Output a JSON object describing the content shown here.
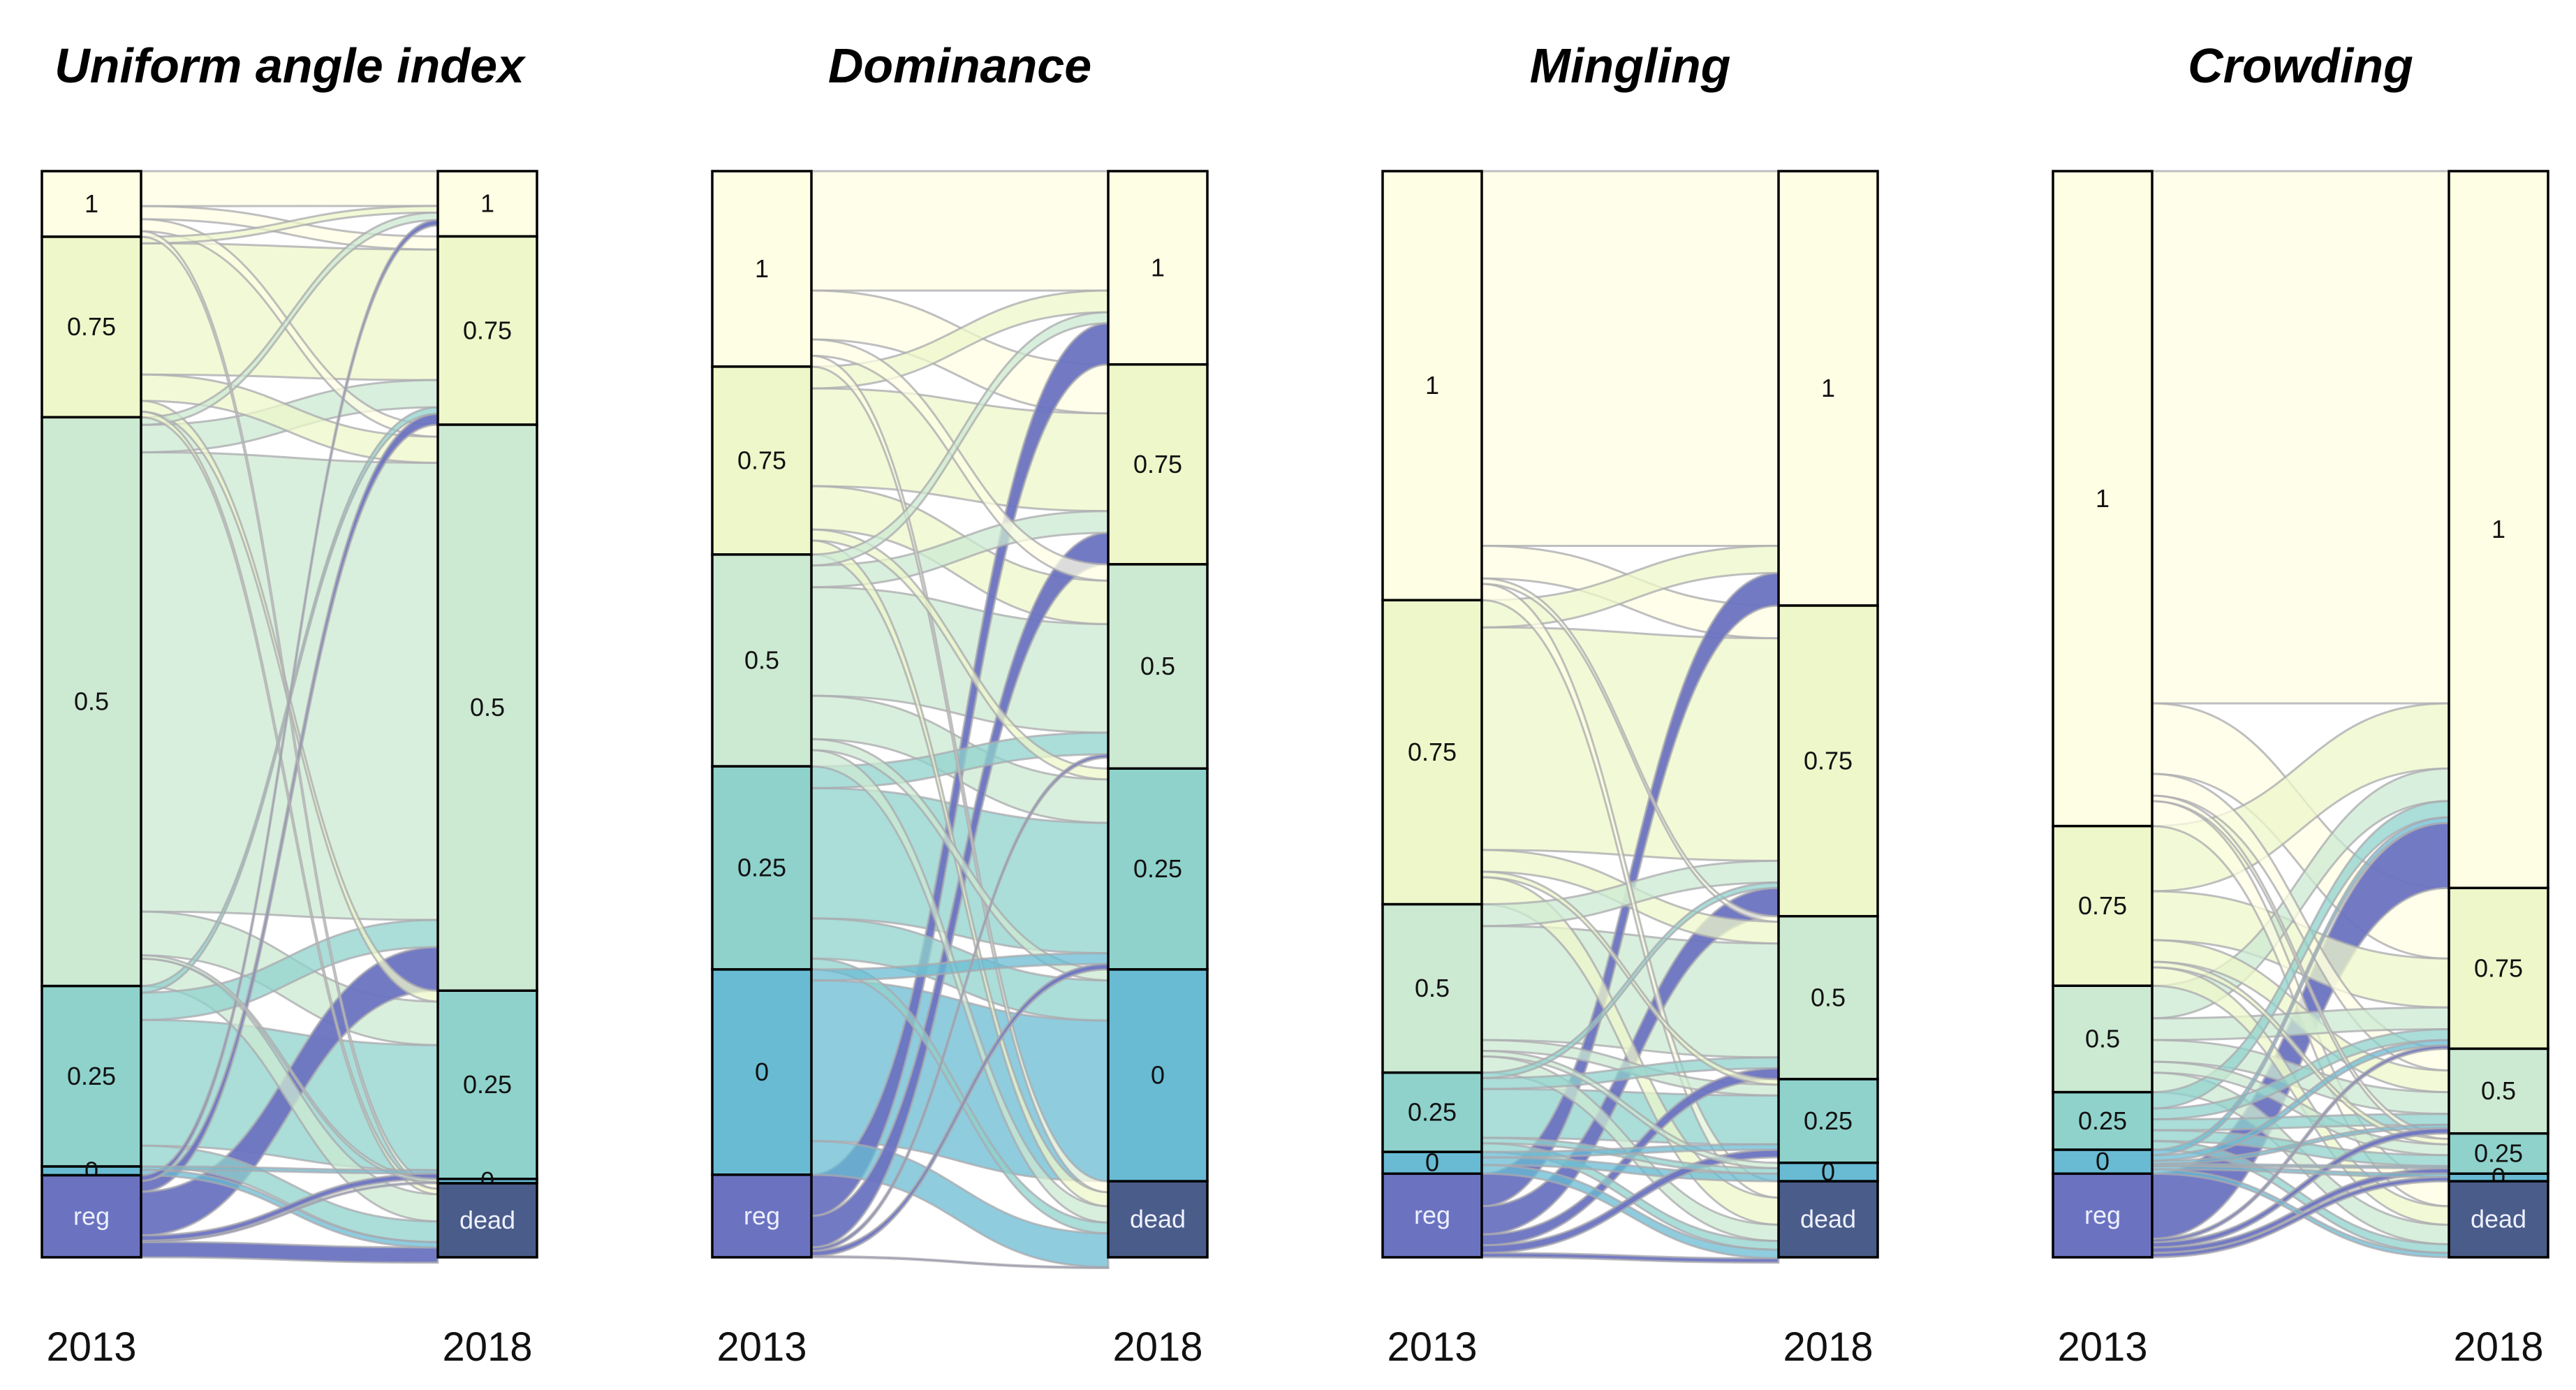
{
  "chart_data": [
    {
      "type": "alluvial",
      "title": "Uniform angle index",
      "x": [
        "2013",
        "2018"
      ],
      "left": [
        {
          "label": "1",
          "value": 6,
          "color": "#fdfee3"
        },
        {
          "label": "0.75",
          "value": 16.5,
          "color": "#edf7c9"
        },
        {
          "label": "0.5",
          "value": 52,
          "color": "#cce9d2"
        },
        {
          "label": "0.25",
          "value": 16.5,
          "color": "#8fd2cc"
        },
        {
          "label": "0",
          "value": 0.8,
          "color": "#68bbd3"
        },
        {
          "label": "reg",
          "value": 7.5,
          "color": "#6b73c1"
        }
      ],
      "right": [
        {
          "label": "1",
          "value": 6,
          "color": "#fdfee3"
        },
        {
          "label": "0.75",
          "value": 17.3,
          "color": "#edf7c9"
        },
        {
          "label": "0.5",
          "value": 52,
          "color": "#cce9d2"
        },
        {
          "label": "0.25",
          "value": 17.3,
          "color": "#8fd2cc"
        },
        {
          "label": "0",
          "value": 0.4,
          "color": "#68bbd3"
        },
        {
          "label": "dead",
          "value": 6.8,
          "color": "#4a5c89"
        }
      ],
      "flows": [
        {
          "from": "1",
          "to": "1",
          "value": 3.2
        },
        {
          "from": "1",
          "to": "0.75",
          "value": 1.2
        },
        {
          "from": "1",
          "to": "0.5",
          "value": 1.1
        },
        {
          "from": "1",
          "to": "dead",
          "value": 0.5
        },
        {
          "from": "0.75",
          "to": "0.75",
          "value": 12
        },
        {
          "from": "0.75",
          "to": "0.5",
          "value": 2.4
        },
        {
          "from": "0.75",
          "to": "0.25",
          "value": 1
        },
        {
          "from": "0.75",
          "to": "1",
          "value": 0.6
        },
        {
          "from": "0.75",
          "to": "dead",
          "value": 0.5
        },
        {
          "from": "0.5",
          "to": "0.75",
          "value": 2.5
        },
        {
          "from": "0.5",
          "to": "0.5",
          "value": 42
        },
        {
          "from": "0.5",
          "to": "0.25",
          "value": 4
        },
        {
          "from": "0.5",
          "to": "1",
          "value": 0.7
        },
        {
          "from": "0.5",
          "to": "0",
          "value": 0.3
        },
        {
          "from": "0.5",
          "to": "dead",
          "value": 2.5
        },
        {
          "from": "0.25",
          "to": "0.5",
          "value": 2.5
        },
        {
          "from": "0.25",
          "to": "0.25",
          "value": 11.5
        },
        {
          "from": "0.25",
          "to": "0.75",
          "value": 0.6
        },
        {
          "from": "0.25",
          "to": "dead",
          "value": 1.9
        },
        {
          "from": "0",
          "to": "0.25",
          "value": 0.3
        },
        {
          "from": "0",
          "to": "dead",
          "value": 0.5
        },
        {
          "from": "reg",
          "to": "1",
          "value": 0.5
        },
        {
          "from": "reg",
          "to": "0.75",
          "value": 1
        },
        {
          "from": "reg",
          "to": "0.5",
          "value": 4
        },
        {
          "from": "reg",
          "to": "0.25",
          "value": 0.5
        },
        {
          "from": "reg",
          "to": "0",
          "value": 0.1
        },
        {
          "from": "reg",
          "to": "dead",
          "value": 1.4
        }
      ]
    },
    {
      "type": "alluvial",
      "title": "Dominance",
      "x": [
        "2013",
        "2018"
      ],
      "left": [
        {
          "label": "1",
          "value": 18,
          "color": "#fdfee3"
        },
        {
          "label": "0.75",
          "value": 17.3,
          "color": "#edf7c9"
        },
        {
          "label": "0.5",
          "value": 19.5,
          "color": "#cce9d2"
        },
        {
          "label": "0.25",
          "value": 18.7,
          "color": "#8fd2cc"
        },
        {
          "label": "0",
          "value": 18.9,
          "color": "#68bbd3"
        },
        {
          "label": "reg",
          "value": 7.6,
          "color": "#6b73c1"
        }
      ],
      "right": [
        {
          "label": "1",
          "value": 17.8,
          "color": "#fdfee3"
        },
        {
          "label": "0.75",
          "value": 18.4,
          "color": "#edf7c9"
        },
        {
          "label": "0.5",
          "value": 18.8,
          "color": "#cce9d2"
        },
        {
          "label": "0.25",
          "value": 18.5,
          "color": "#8fd2cc"
        },
        {
          "label": "0",
          "value": 19.5,
          "color": "#68bbd3"
        },
        {
          "label": "dead",
          "value": 7,
          "color": "#4a5c89"
        }
      ],
      "flows": [
        {
          "from": "1",
          "to": "1",
          "value": 11
        },
        {
          "from": "1",
          "to": "0.75",
          "value": 4.5
        },
        {
          "from": "1",
          "to": "0.5",
          "value": 1.5
        },
        {
          "from": "1",
          "to": "dead",
          "value": 1
        },
        {
          "from": "0.75",
          "to": "1",
          "value": 2
        },
        {
          "from": "0.75",
          "to": "0.75",
          "value": 9
        },
        {
          "from": "0.75",
          "to": "0.5",
          "value": 4
        },
        {
          "from": "0.75",
          "to": "0.25",
          "value": 1
        },
        {
          "from": "0.75",
          "to": "dead",
          "value": 1.3
        },
        {
          "from": "0.5",
          "to": "1",
          "value": 1
        },
        {
          "from": "0.5",
          "to": "0.75",
          "value": 2
        },
        {
          "from": "0.5",
          "to": "0.5",
          "value": 10
        },
        {
          "from": "0.5",
          "to": "0.25",
          "value": 4
        },
        {
          "from": "0.5",
          "to": "0",
          "value": 1
        },
        {
          "from": "0.5",
          "to": "dead",
          "value": 1.5
        },
        {
          "from": "0.25",
          "to": "0.5",
          "value": 2
        },
        {
          "from": "0.25",
          "to": "0.25",
          "value": 12
        },
        {
          "from": "0.25",
          "to": "0",
          "value": 3.7
        },
        {
          "from": "0.25",
          "to": "dead",
          "value": 1
        },
        {
          "from": "0",
          "to": "0.25",
          "value": 1
        },
        {
          "from": "0",
          "to": "0",
          "value": 14.8
        },
        {
          "from": "0",
          "to": "dead",
          "value": 3.1
        },
        {
          "from": "reg",
          "to": "1",
          "value": 3.8
        },
        {
          "from": "reg",
          "to": "0.75",
          "value": 2.9
        },
        {
          "from": "reg",
          "to": "0.5",
          "value": 0.3
        },
        {
          "from": "reg",
          "to": "0.25",
          "value": 0.5
        },
        {
          "from": "reg",
          "to": "dead",
          "value": 0.1
        }
      ]
    },
    {
      "type": "alluvial",
      "title": "Mingling",
      "x": [
        "2013",
        "2018"
      ],
      "left": [
        {
          "label": "1",
          "value": 39.5,
          "color": "#fdfee3"
        },
        {
          "label": "0.75",
          "value": 28,
          "color": "#edf7c9"
        },
        {
          "label": "0.5",
          "value": 15.5,
          "color": "#cce9d2"
        },
        {
          "label": "0.25",
          "value": 7.3,
          "color": "#8fd2cc"
        },
        {
          "label": "0",
          "value": 2,
          "color": "#68bbd3"
        },
        {
          "label": "reg",
          "value": 7.7,
          "color": "#6b73c1"
        }
      ],
      "right": [
        {
          "label": "1",
          "value": 40,
          "color": "#fdfee3"
        },
        {
          "label": "0.75",
          "value": 28.6,
          "color": "#edf7c9"
        },
        {
          "label": "0.5",
          "value": 15,
          "color": "#cce9d2"
        },
        {
          "label": "0.25",
          "value": 7.7,
          "color": "#8fd2cc"
        },
        {
          "label": "0",
          "value": 1.7,
          "color": "#68bbd3"
        },
        {
          "label": "dead",
          "value": 7,
          "color": "#4a5c89"
        }
      ],
      "flows": [
        {
          "from": "1",
          "to": "1",
          "value": 34.5
        },
        {
          "from": "1",
          "to": "0.75",
          "value": 3
        },
        {
          "from": "1",
          "to": "0.5",
          "value": 0.5
        },
        {
          "from": "1",
          "to": "dead",
          "value": 1.5
        },
        {
          "from": "0.75",
          "to": "1",
          "value": 2.5
        },
        {
          "from": "0.75",
          "to": "0.75",
          "value": 20.5
        },
        {
          "from": "0.75",
          "to": "0.5",
          "value": 2
        },
        {
          "from": "0.75",
          "to": "0.25",
          "value": 0.5
        },
        {
          "from": "0.75",
          "to": "dead",
          "value": 2.5
        },
        {
          "from": "0.5",
          "to": "0.75",
          "value": 2
        },
        {
          "from": "0.5",
          "to": "0.5",
          "value": 10.5
        },
        {
          "from": "0.5",
          "to": "0.25",
          "value": 1
        },
        {
          "from": "0.5",
          "to": "0",
          "value": 0.5
        },
        {
          "from": "0.5",
          "to": "dead",
          "value": 1.5
        },
        {
          "from": "0.25",
          "to": "0.75",
          "value": 0.5
        },
        {
          "from": "0.25",
          "to": "0.5",
          "value": 1
        },
        {
          "from": "0.25",
          "to": "0.25",
          "value": 4.5
        },
        {
          "from": "0.25",
          "to": "0",
          "value": 0.5
        },
        {
          "from": "0.25",
          "to": "dead",
          "value": 0.8
        },
        {
          "from": "0",
          "to": "0.25",
          "value": 0.5
        },
        {
          "from": "0",
          "to": "0",
          "value": 0.7
        },
        {
          "from": "0",
          "to": "dead",
          "value": 0.8
        },
        {
          "from": "reg",
          "to": "1",
          "value": 3
        },
        {
          "from": "reg",
          "to": "0.75",
          "value": 2.6
        },
        {
          "from": "reg",
          "to": "0.5",
          "value": 1
        },
        {
          "from": "reg",
          "to": "0.25",
          "value": 0.7
        },
        {
          "from": "reg",
          "to": "dead",
          "value": 0.4
        }
      ]
    },
    {
      "type": "alluvial",
      "title": "Crowding",
      "x": [
        "2013",
        "2018"
      ],
      "left": [
        {
          "label": "1",
          "value": 60.3,
          "color": "#fdfee3"
        },
        {
          "label": "0.75",
          "value": 14.7,
          "color": "#edf7c9"
        },
        {
          "label": "0.5",
          "value": 9.8,
          "color": "#cce9d2"
        },
        {
          "label": "0.25",
          "value": 5.3,
          "color": "#8fd2cc"
        },
        {
          "label": "0",
          "value": 2.2,
          "color": "#68bbd3"
        },
        {
          "label": "reg",
          "value": 7.7,
          "color": "#6b73c1"
        }
      ],
      "right": [
        {
          "label": "1",
          "value": 66,
          "color": "#fdfee3"
        },
        {
          "label": "0.75",
          "value": 14.8,
          "color": "#edf7c9"
        },
        {
          "label": "0.5",
          "value": 7.8,
          "color": "#cce9d2"
        },
        {
          "label": "0.25",
          "value": 3.7,
          "color": "#8fd2cc"
        },
        {
          "label": "0",
          "value": 0.7,
          "color": "#68bbd3"
        },
        {
          "label": "dead",
          "value": 7,
          "color": "#4a5c89"
        }
      ],
      "flows": [
        {
          "from": "1",
          "to": "1",
          "value": 49
        },
        {
          "from": "1",
          "to": "0.75",
          "value": 6.5
        },
        {
          "from": "1",
          "to": "0.5",
          "value": 2
        },
        {
          "from": "1",
          "to": "0.25",
          "value": 0.5
        },
        {
          "from": "1",
          "to": "dead",
          "value": 2.3
        },
        {
          "from": "0.75",
          "to": "1",
          "value": 6
        },
        {
          "from": "0.75",
          "to": "0.75",
          "value": 4.5
        },
        {
          "from": "0.75",
          "to": "0.5",
          "value": 2
        },
        {
          "from": "0.75",
          "to": "0.25",
          "value": 0.5
        },
        {
          "from": "0.75",
          "to": "dead",
          "value": 1.7
        },
        {
          "from": "0.5",
          "to": "1",
          "value": 3
        },
        {
          "from": "0.5",
          "to": "0.75",
          "value": 2
        },
        {
          "from": "0.5",
          "to": "0.5",
          "value": 2
        },
        {
          "from": "0.5",
          "to": "0.25",
          "value": 1
        },
        {
          "from": "0.5",
          "to": "dead",
          "value": 1.8
        },
        {
          "from": "0.25",
          "to": "1",
          "value": 1.5
        },
        {
          "from": "0.25",
          "to": "0.75",
          "value": 1
        },
        {
          "from": "0.25",
          "to": "0.5",
          "value": 1
        },
        {
          "from": "0.25",
          "to": "0.25",
          "value": 1
        },
        {
          "from": "0.25",
          "to": "dead",
          "value": 0.8
        },
        {
          "from": "0",
          "to": "1",
          "value": 0.5
        },
        {
          "from": "0",
          "to": "0.75",
          "value": 0.5
        },
        {
          "from": "0",
          "to": "0.5",
          "value": 0.3
        },
        {
          "from": "0",
          "to": "0.25",
          "value": 0.2
        },
        {
          "from": "0",
          "to": "0",
          "value": 0.3
        },
        {
          "from": "0",
          "to": "dead",
          "value": 0.4
        },
        {
          "from": "reg",
          "to": "1",
          "value": 6
        },
        {
          "from": "reg",
          "to": "0.75",
          "value": 0.3
        },
        {
          "from": "reg",
          "to": "0.5",
          "value": 0.5
        },
        {
          "from": "reg",
          "to": "0.25",
          "value": 0.5
        },
        {
          "from": "reg",
          "to": "0",
          "value": 0.4
        }
      ]
    }
  ]
}
